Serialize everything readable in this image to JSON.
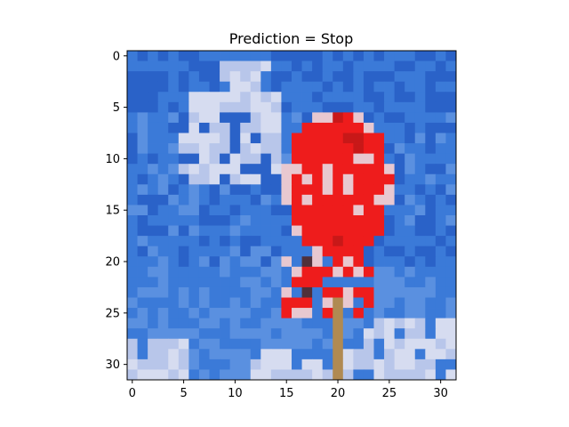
{
  "chart_data": {
    "type": "heatmap",
    "title": "Prediction = Stop",
    "xlabel": "",
    "ylabel": "",
    "grid": false,
    "legend": "none",
    "xlim": [
      -0.5,
      31.5
    ],
    "ylim": [
      31.5,
      -0.5
    ],
    "x_ticks": [
      0,
      5,
      10,
      15,
      20,
      25,
      30
    ],
    "y_ticks": [
      0,
      5,
      10,
      15,
      20,
      25,
      30
    ],
    "x_tick_labels": [
      "0",
      "5",
      "10",
      "15",
      "20",
      "25",
      "30"
    ],
    "y_tick_labels": [
      "0",
      "5",
      "10",
      "15",
      "20",
      "25",
      "30"
    ],
    "image": {
      "rows": 32,
      "cols": 32,
      "content": "pixelated 32x32 photo of a red stop sign on a pole against a blue sky with clouds",
      "palette": {
        "sky_dark": "#2a62c8",
        "sky": "#3b7ad8",
        "sky_light": "#5a90e0",
        "cloud": "#b8c6ea",
        "cloud_light": "#d6dcf0",
        "sign_red": "#ee1c1c",
        "sign_red_dark": "#c81818",
        "sign_text": "#e8c8d0",
        "pole": "#b08a52",
        "dark": "#50303a"
      },
      "cloud_regions": [
        {
          "row_from": 4,
          "row_to": 12,
          "col_from": 5,
          "col_to": 14
        },
        {
          "row_from": 1,
          "row_to": 5,
          "col_from": 9,
          "col_to": 13
        },
        {
          "row_from": 26,
          "row_to": 31,
          "col_from": 23,
          "col_to": 31
        },
        {
          "row_from": 28,
          "row_to": 31,
          "col_from": 0,
          "col_to": 5
        },
        {
          "row_from": 29,
          "row_to": 31,
          "col_from": 12,
          "col_to": 22
        }
      ],
      "sign": {
        "center_row": 12.5,
        "center_col": 20.0,
        "radius_rows": 7.2,
        "radius_cols": 5.2
      },
      "sign_base": {
        "row_from": 19,
        "row_to": 25,
        "col_from": 15,
        "col_to": 23
      },
      "pole": {
        "row_from": 24,
        "row_to": 31,
        "col": 20
      }
    }
  }
}
